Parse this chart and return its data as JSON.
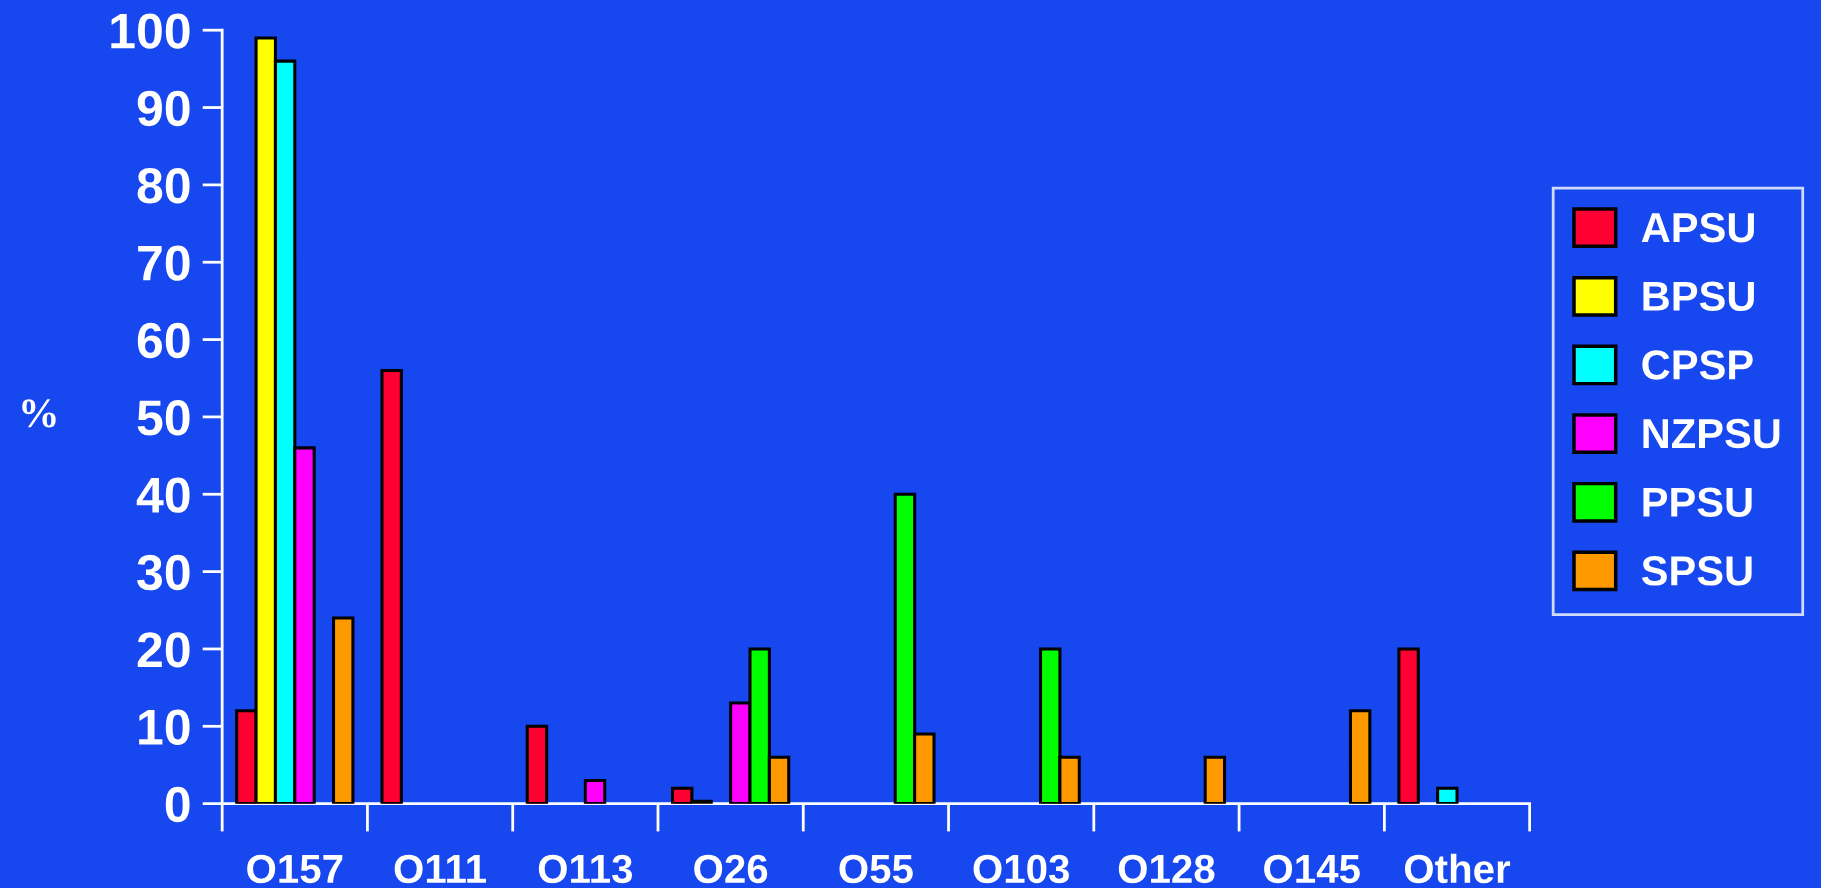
{
  "chart_data": {
    "type": "bar",
    "ylabel": "%",
    "categories": [
      "O157",
      "O111",
      "O113",
      "O26",
      "O55",
      "O103",
      "O128",
      "O145",
      "Other"
    ],
    "series": [
      {
        "name": "APSU",
        "color": "#ff0033",
        "values": [
          12,
          56,
          10,
          2,
          null,
          null,
          null,
          null,
          20
        ]
      },
      {
        "name": "BPSU",
        "color": "#ffff00",
        "values": [
          99,
          null,
          null,
          0.3,
          null,
          null,
          null,
          null,
          null
        ]
      },
      {
        "name": "CPSP",
        "color": "#00ffff",
        "values": [
          96,
          null,
          null,
          null,
          null,
          null,
          null,
          null,
          2
        ]
      },
      {
        "name": "NZPSU",
        "color": "#ff00ff",
        "values": [
          46,
          null,
          3,
          13,
          null,
          null,
          null,
          null,
          null
        ]
      },
      {
        "name": "PPSU",
        "color": "#00ff00",
        "values": [
          null,
          null,
          null,
          20,
          40,
          20,
          null,
          null,
          null
        ]
      },
      {
        "name": "SPSU",
        "color": "#ff9900",
        "values": [
          24,
          null,
          null,
          6,
          9,
          6,
          6,
          12,
          null
        ]
      }
    ],
    "ylim": [
      0,
      100
    ],
    "yticks": [
      0,
      10,
      20,
      30,
      40,
      50,
      60,
      70,
      80,
      90,
      100
    ],
    "grid": false,
    "legend": "right"
  }
}
